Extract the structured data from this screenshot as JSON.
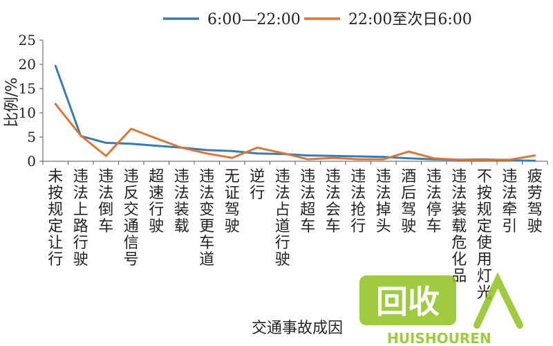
{
  "chart_data": {
    "type": "line",
    "xlabel": "交通事故成因",
    "ylabel": "比例/%",
    "ylim": [
      0,
      25
    ],
    "yticks": [
      0,
      5,
      10,
      15,
      20,
      25
    ],
    "grid": false,
    "legend_position": "top",
    "categories": [
      "未按规定让行",
      "违法上路行驶",
      "违法倒车",
      "违反交通信号",
      "超速行驶",
      "违法装载",
      "违法变更车道",
      "无证驾驶",
      "逆行",
      "违法占道行驶",
      "违法超车",
      "违法会车",
      "违法抢行",
      "违法掉头",
      "酒后驾驶",
      "违法停车",
      "违法装载危化品",
      "不按规定使用灯光",
      "违法牵引",
      "疲劳驾驶"
    ],
    "series": [
      {
        "name": "6:00—22:00",
        "color": "#3a7bb0",
        "values": [
          19.7,
          5.2,
          3.8,
          3.6,
          3.2,
          2.8,
          2.3,
          2.1,
          1.6,
          1.5,
          1.2,
          1.1,
          1.0,
          0.9,
          0.6,
          0.4,
          0.3,
          0.4,
          0.2,
          0.1
        ]
      },
      {
        "name": "22:00至次日6:00",
        "color": "#d9773a",
        "values": [
          11.8,
          5.3,
          1.1,
          6.7,
          4.7,
          2.8,
          1.6,
          0.7,
          2.8,
          1.7,
          0.4,
          0.7,
          0.4,
          0.4,
          2.0,
          0.6,
          0.3,
          0.3,
          0.3,
          1.2
        ]
      }
    ]
  },
  "watermark": {
    "brand": "回收",
    "sub": "HUISHOUREN"
  }
}
